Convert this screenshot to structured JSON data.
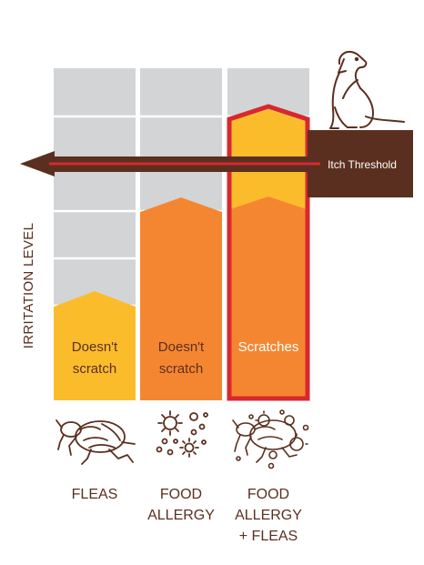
{
  "y_axis_label": "IRRITATION LEVEL",
  "threshold_label": "Itch Threshold",
  "columns": [
    {
      "bar_text_line1": "Doesn't",
      "bar_text_line2": "scratch",
      "label_lines": [
        "FLEAS"
      ],
      "icon": "flea-icon",
      "level": 0.35
    },
    {
      "bar_text_line1": "Doesn't",
      "bar_text_line2": "scratch",
      "label_lines": [
        "FOOD",
        "ALLERGY"
      ],
      "icon": "allergen-particles-icon",
      "level": 0.7
    },
    {
      "bar_text_line1": "Scratches",
      "bar_text_line2": "",
      "label_lines": [
        "FOOD",
        "ALLERGY",
        "+ FLEAS"
      ],
      "icon": "flea-and-allergens-icon",
      "level": 1.0
    }
  ],
  "colors": {
    "grid_bg": "#d3d4d5",
    "grid_line": "#ffffff",
    "yellow": "#fbbc2c",
    "orange": "#f58631",
    "red_outline": "#d7282f",
    "brown": "#5b2f1f",
    "icon_color": "#5b2f1f",
    "text_dark": "#5b2f1f",
    "bar_text": "#5b2f1f",
    "bar_text_light": "#ffffff"
  }
}
